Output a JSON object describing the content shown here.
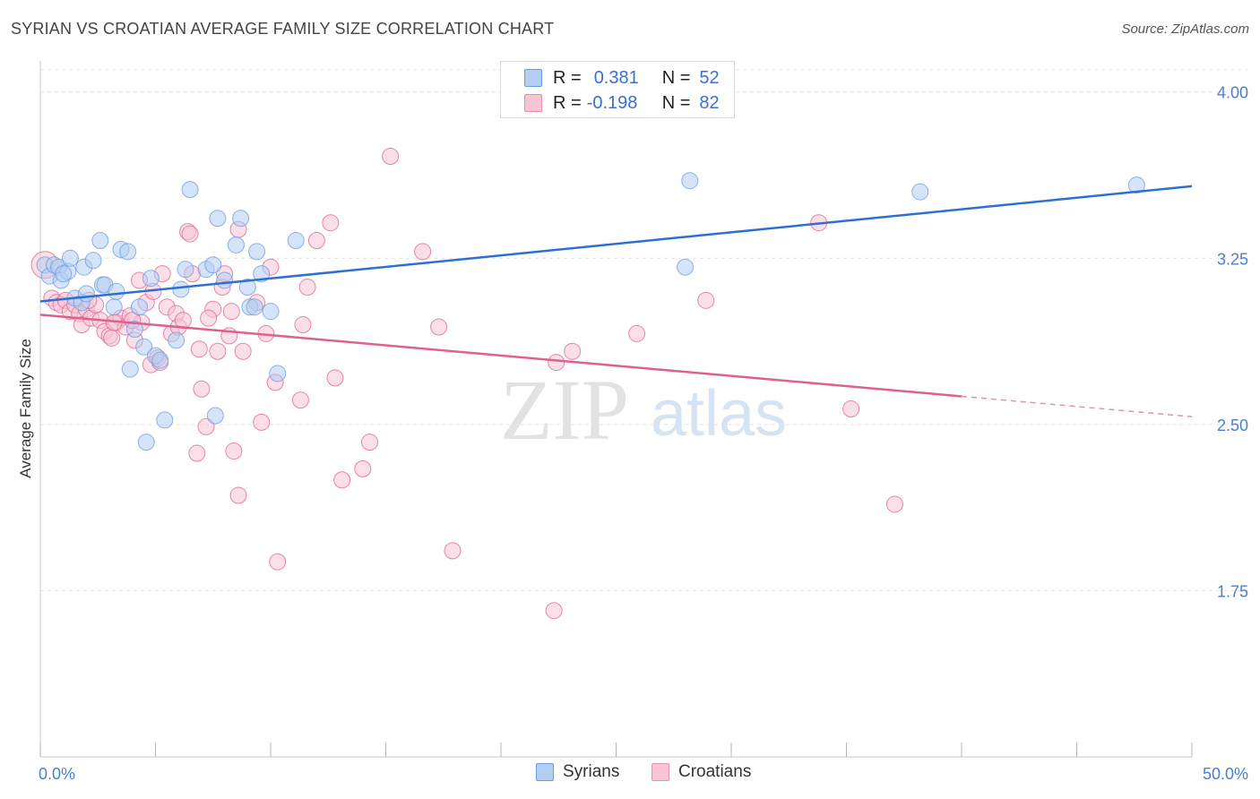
{
  "header": {
    "title": "SYRIAN VS CROATIAN AVERAGE FAMILY SIZE CORRELATION CHART",
    "source": "Source: ZipAtlas.com"
  },
  "watermark": {
    "zip": "ZIP",
    "atlas": "atlas"
  },
  "legend": {
    "rows": [
      {
        "r_label": "R =",
        "r_value": "0.381",
        "n_label": "N =",
        "n_value": "52",
        "color": "#a9c7f2"
      },
      {
        "r_label": "R =",
        "r_value": "-0.198",
        "n_label": "N =",
        "n_value": "82",
        "color": "#f6b8cc"
      }
    ]
  },
  "bottom_legend": {
    "syrians": "Syrians",
    "croatians": "Croatians"
  },
  "chart_data": {
    "type": "scatter",
    "title": "SYRIAN VS CROATIAN AVERAGE FAMILY SIZE CORRELATION CHART",
    "xlabel": "",
    "ylabel": "Average Family Size",
    "xlim": [
      0,
      50
    ],
    "ylim": [
      1.0,
      4.1
    ],
    "x_tick_labels": [
      "0.0%",
      "50.0%"
    ],
    "y_ticks": [
      1.75,
      2.5,
      3.25,
      4.0
    ],
    "y_tick_labels": [
      "1.75",
      "2.50",
      "3.25",
      "4.00"
    ],
    "grid": true,
    "series": [
      {
        "name": "Syrians",
        "color": "#6a9be0",
        "fill": "#b3cdf3",
        "trend": {
          "x": [
            0,
            50
          ],
          "y": [
            3.055,
            3.575
          ],
          "solid_to": 50
        },
        "points": [
          [
            0.2,
            3.22
          ],
          [
            0.4,
            3.17
          ],
          [
            0.6,
            3.22
          ],
          [
            0.8,
            3.21
          ],
          [
            0.9,
            3.15
          ],
          [
            1.2,
            3.19
          ],
          [
            1.3,
            3.25
          ],
          [
            1.5,
            3.07
          ],
          [
            1.8,
            3.05
          ],
          [
            1.9,
            3.21
          ],
          [
            2.0,
            3.09
          ],
          [
            2.3,
            3.24
          ],
          [
            2.6,
            3.33
          ],
          [
            2.7,
            3.13
          ],
          [
            2.8,
            3.13
          ],
          [
            3.2,
            3.03
          ],
          [
            3.3,
            3.1
          ],
          [
            3.5,
            3.29
          ],
          [
            3.8,
            3.28
          ],
          [
            3.9,
            2.75
          ],
          [
            4.1,
            2.93
          ],
          [
            4.3,
            3.03
          ],
          [
            4.5,
            2.85
          ],
          [
            4.6,
            2.42
          ],
          [
            4.8,
            3.16
          ],
          [
            5.0,
            2.81
          ],
          [
            5.2,
            2.79
          ],
          [
            5.4,
            2.52
          ],
          [
            5.9,
            2.88
          ],
          [
            6.1,
            3.11
          ],
          [
            6.3,
            3.2
          ],
          [
            6.5,
            3.56
          ],
          [
            7.2,
            3.2
          ],
          [
            7.5,
            3.22
          ],
          [
            7.6,
            2.54
          ],
          [
            7.7,
            3.43
          ],
          [
            8.0,
            3.15
          ],
          [
            8.5,
            3.31
          ],
          [
            8.7,
            3.43
          ],
          [
            9.0,
            3.12
          ],
          [
            9.1,
            3.03
          ],
          [
            9.3,
            3.03
          ],
          [
            9.4,
            3.28
          ],
          [
            9.6,
            3.18
          ],
          [
            10.0,
            3.01
          ],
          [
            10.3,
            2.73
          ],
          [
            11.1,
            3.33
          ],
          [
            1.0,
            3.18
          ],
          [
            28.0,
            3.21
          ],
          [
            28.2,
            3.6
          ],
          [
            38.2,
            3.55
          ],
          [
            47.6,
            3.58
          ]
        ]
      },
      {
        "name": "Croatians",
        "color": "#e0608c",
        "fill": "#f8c5d5",
        "trend": {
          "x": [
            0,
            50
          ],
          "y": [
            2.995,
            2.535
          ],
          "solid_to": 40
        },
        "points": [
          [
            0.2,
            3.22
          ],
          [
            0.5,
            3.07
          ],
          [
            0.7,
            3.05
          ],
          [
            0.9,
            3.04
          ],
          [
            1.1,
            3.06
          ],
          [
            1.3,
            3.01
          ],
          [
            1.5,
            3.04
          ],
          [
            1.7,
            3.0
          ],
          [
            1.8,
            2.95
          ],
          [
            2.0,
            3.02
          ],
          [
            2.2,
            2.98
          ],
          [
            2.4,
            3.04
          ],
          [
            2.6,
            2.97
          ],
          [
            2.8,
            2.92
          ],
          [
            3.0,
            2.9
          ],
          [
            3.1,
            2.89
          ],
          [
            3.3,
            2.96
          ],
          [
            3.5,
            2.98
          ],
          [
            3.7,
            2.94
          ],
          [
            3.9,
            2.99
          ],
          [
            4.1,
            2.88
          ],
          [
            4.3,
            3.15
          ],
          [
            4.4,
            2.96
          ],
          [
            4.6,
            3.05
          ],
          [
            4.8,
            2.77
          ],
          [
            4.9,
            3.1
          ],
          [
            5.1,
            2.8
          ],
          [
            5.3,
            3.18
          ],
          [
            5.5,
            3.03
          ],
          [
            5.7,
            2.91
          ],
          [
            5.9,
            3.0
          ],
          [
            6.0,
            2.94
          ],
          [
            6.2,
            2.97
          ],
          [
            6.4,
            3.37
          ],
          [
            6.6,
            3.18
          ],
          [
            6.8,
            2.37
          ],
          [
            6.9,
            2.84
          ],
          [
            7.0,
            2.66
          ],
          [
            7.2,
            2.49
          ],
          [
            7.5,
            3.02
          ],
          [
            7.7,
            2.83
          ],
          [
            7.9,
            3.12
          ],
          [
            8.0,
            3.18
          ],
          [
            8.2,
            2.9
          ],
          [
            8.3,
            3.01
          ],
          [
            8.4,
            2.38
          ],
          [
            8.6,
            2.18
          ],
          [
            8.8,
            2.83
          ],
          [
            9.4,
            3.05
          ],
          [
            9.6,
            2.51
          ],
          [
            9.8,
            2.91
          ],
          [
            10.0,
            3.21
          ],
          [
            10.2,
            2.69
          ],
          [
            10.3,
            1.88
          ],
          [
            11.3,
            2.61
          ],
          [
            11.4,
            2.95
          ],
          [
            11.6,
            3.12
          ],
          [
            12.0,
            3.33
          ],
          [
            12.6,
            3.41
          ],
          [
            12.8,
            2.71
          ],
          [
            13.1,
            2.25
          ],
          [
            14.0,
            2.3
          ],
          [
            14.3,
            2.42
          ],
          [
            15.2,
            3.71
          ],
          [
            16.6,
            3.28
          ],
          [
            17.3,
            2.94
          ],
          [
            17.9,
            1.93
          ],
          [
            22.3,
            1.66
          ],
          [
            22.4,
            2.78
          ],
          [
            23.1,
            2.83
          ],
          [
            25.9,
            2.91
          ],
          [
            28.9,
            3.06
          ],
          [
            33.8,
            3.41
          ],
          [
            35.2,
            2.57
          ],
          [
            37.1,
            2.14
          ],
          [
            6.5,
            3.36
          ],
          [
            8.6,
            3.38
          ],
          [
            2.1,
            3.06
          ],
          [
            5.2,
            2.78
          ],
          [
            4.0,
            2.97
          ],
          [
            7.3,
            2.98
          ],
          [
            3.2,
            2.96
          ]
        ]
      }
    ]
  }
}
